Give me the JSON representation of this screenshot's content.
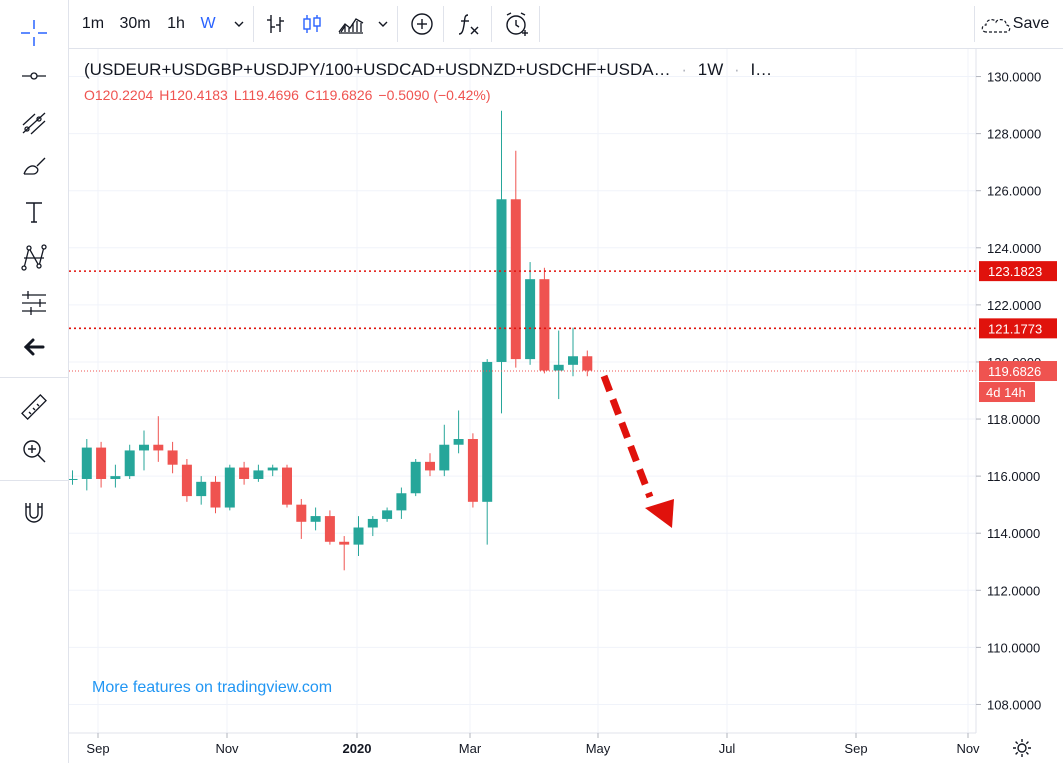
{
  "toolbar": {
    "intervals": [
      "1m",
      "30m",
      "1h",
      "W"
    ],
    "active_interval": "W",
    "save_label": "Save"
  },
  "legend": {
    "symbol": "(USDEUR+USDGBP+USDJPY/100+USDCAD+USDNZD+USDCHF+USDA…",
    "interval": "1W",
    "extra": "I…"
  },
  "ohlc": {
    "open": "O120.2204",
    "high": "H120.4183",
    "low": "L119.4696",
    "close": "C119.6826",
    "change": "−0.5090 (−0.42%)"
  },
  "watermark": "More features on tradingview.com",
  "price_lines": [
    {
      "value": 123.1823,
      "label": "123.1823"
    },
    {
      "value": 121.1773,
      "label": "121.1773"
    }
  ],
  "last_price": {
    "value": 119.6826,
    "label": "119.6826",
    "countdown": "4d 14h"
  },
  "colors": {
    "up": "#26a69a",
    "down": "#ef5350",
    "accent": "#2962ff",
    "line": "#e0120c"
  },
  "chart_data": {
    "type": "candlestick",
    "y_axis": {
      "min": 107,
      "max": 131,
      "ticks": [
        "108.0000",
        "110.0000",
        "112.0000",
        "114.0000",
        "116.0000",
        "118.0000",
        "120.0000",
        "122.0000",
        "124.0000",
        "126.0000",
        "128.0000",
        "130.0000"
      ]
    },
    "x_axis": {
      "ticks": [
        "Sep",
        "Nov",
        "2020",
        "Mar",
        "May",
        "Jul",
        "Sep",
        "Nov"
      ]
    },
    "candles": [
      [
        115.9,
        116.2,
        115.7,
        115.9
      ],
      [
        115.9,
        117.3,
        115.5,
        117.0
      ],
      [
        117.0,
        117.2,
        115.6,
        115.9
      ],
      [
        115.9,
        116.4,
        115.6,
        116.0
      ],
      [
        116.0,
        117.1,
        115.9,
        116.9
      ],
      [
        116.9,
        117.6,
        116.2,
        117.1
      ],
      [
        117.1,
        118.1,
        116.5,
        116.9
      ],
      [
        116.9,
        117.2,
        116.1,
        116.4
      ],
      [
        116.4,
        116.6,
        115.1,
        115.3
      ],
      [
        115.3,
        116.0,
        115.0,
        115.8
      ],
      [
        115.8,
        116.0,
        114.7,
        114.9
      ],
      [
        114.9,
        116.4,
        114.8,
        116.3
      ],
      [
        116.3,
        116.5,
        115.7,
        115.9
      ],
      [
        115.9,
        116.4,
        115.8,
        116.2
      ],
      [
        116.2,
        116.4,
        116.0,
        116.3
      ],
      [
        116.3,
        116.4,
        114.9,
        115.0
      ],
      [
        115.0,
        115.2,
        113.8,
        114.4
      ],
      [
        114.4,
        114.9,
        114.1,
        114.6
      ],
      [
        114.6,
        114.8,
        113.6,
        113.7
      ],
      [
        113.7,
        113.9,
        112.7,
        113.6
      ],
      [
        113.6,
        114.6,
        113.2,
        114.2
      ],
      [
        114.2,
        114.6,
        113.9,
        114.5
      ],
      [
        114.5,
        114.9,
        114.4,
        114.8
      ],
      [
        114.8,
        115.6,
        114.5,
        115.4
      ],
      [
        115.4,
        116.6,
        115.3,
        116.5
      ],
      [
        116.5,
        116.8,
        116.0,
        116.2
      ],
      [
        116.2,
        117.8,
        116.0,
        117.1
      ],
      [
        117.1,
        118.3,
        116.8,
        117.3
      ],
      [
        117.3,
        117.5,
        114.9,
        115.1
      ],
      [
        115.1,
        120.1,
        113.6,
        120.0
      ],
      [
        120.0,
        128.8,
        118.2,
        125.7
      ],
      [
        125.7,
        127.4,
        119.8,
        120.1
      ],
      [
        120.1,
        123.5,
        119.9,
        122.9
      ],
      [
        122.9,
        123.3,
        119.6,
        119.7
      ],
      [
        119.7,
        121.1,
        118.7,
        119.9
      ],
      [
        119.9,
        121.2,
        119.5,
        120.2
      ],
      [
        120.2,
        120.4,
        119.5,
        119.7
      ]
    ]
  }
}
